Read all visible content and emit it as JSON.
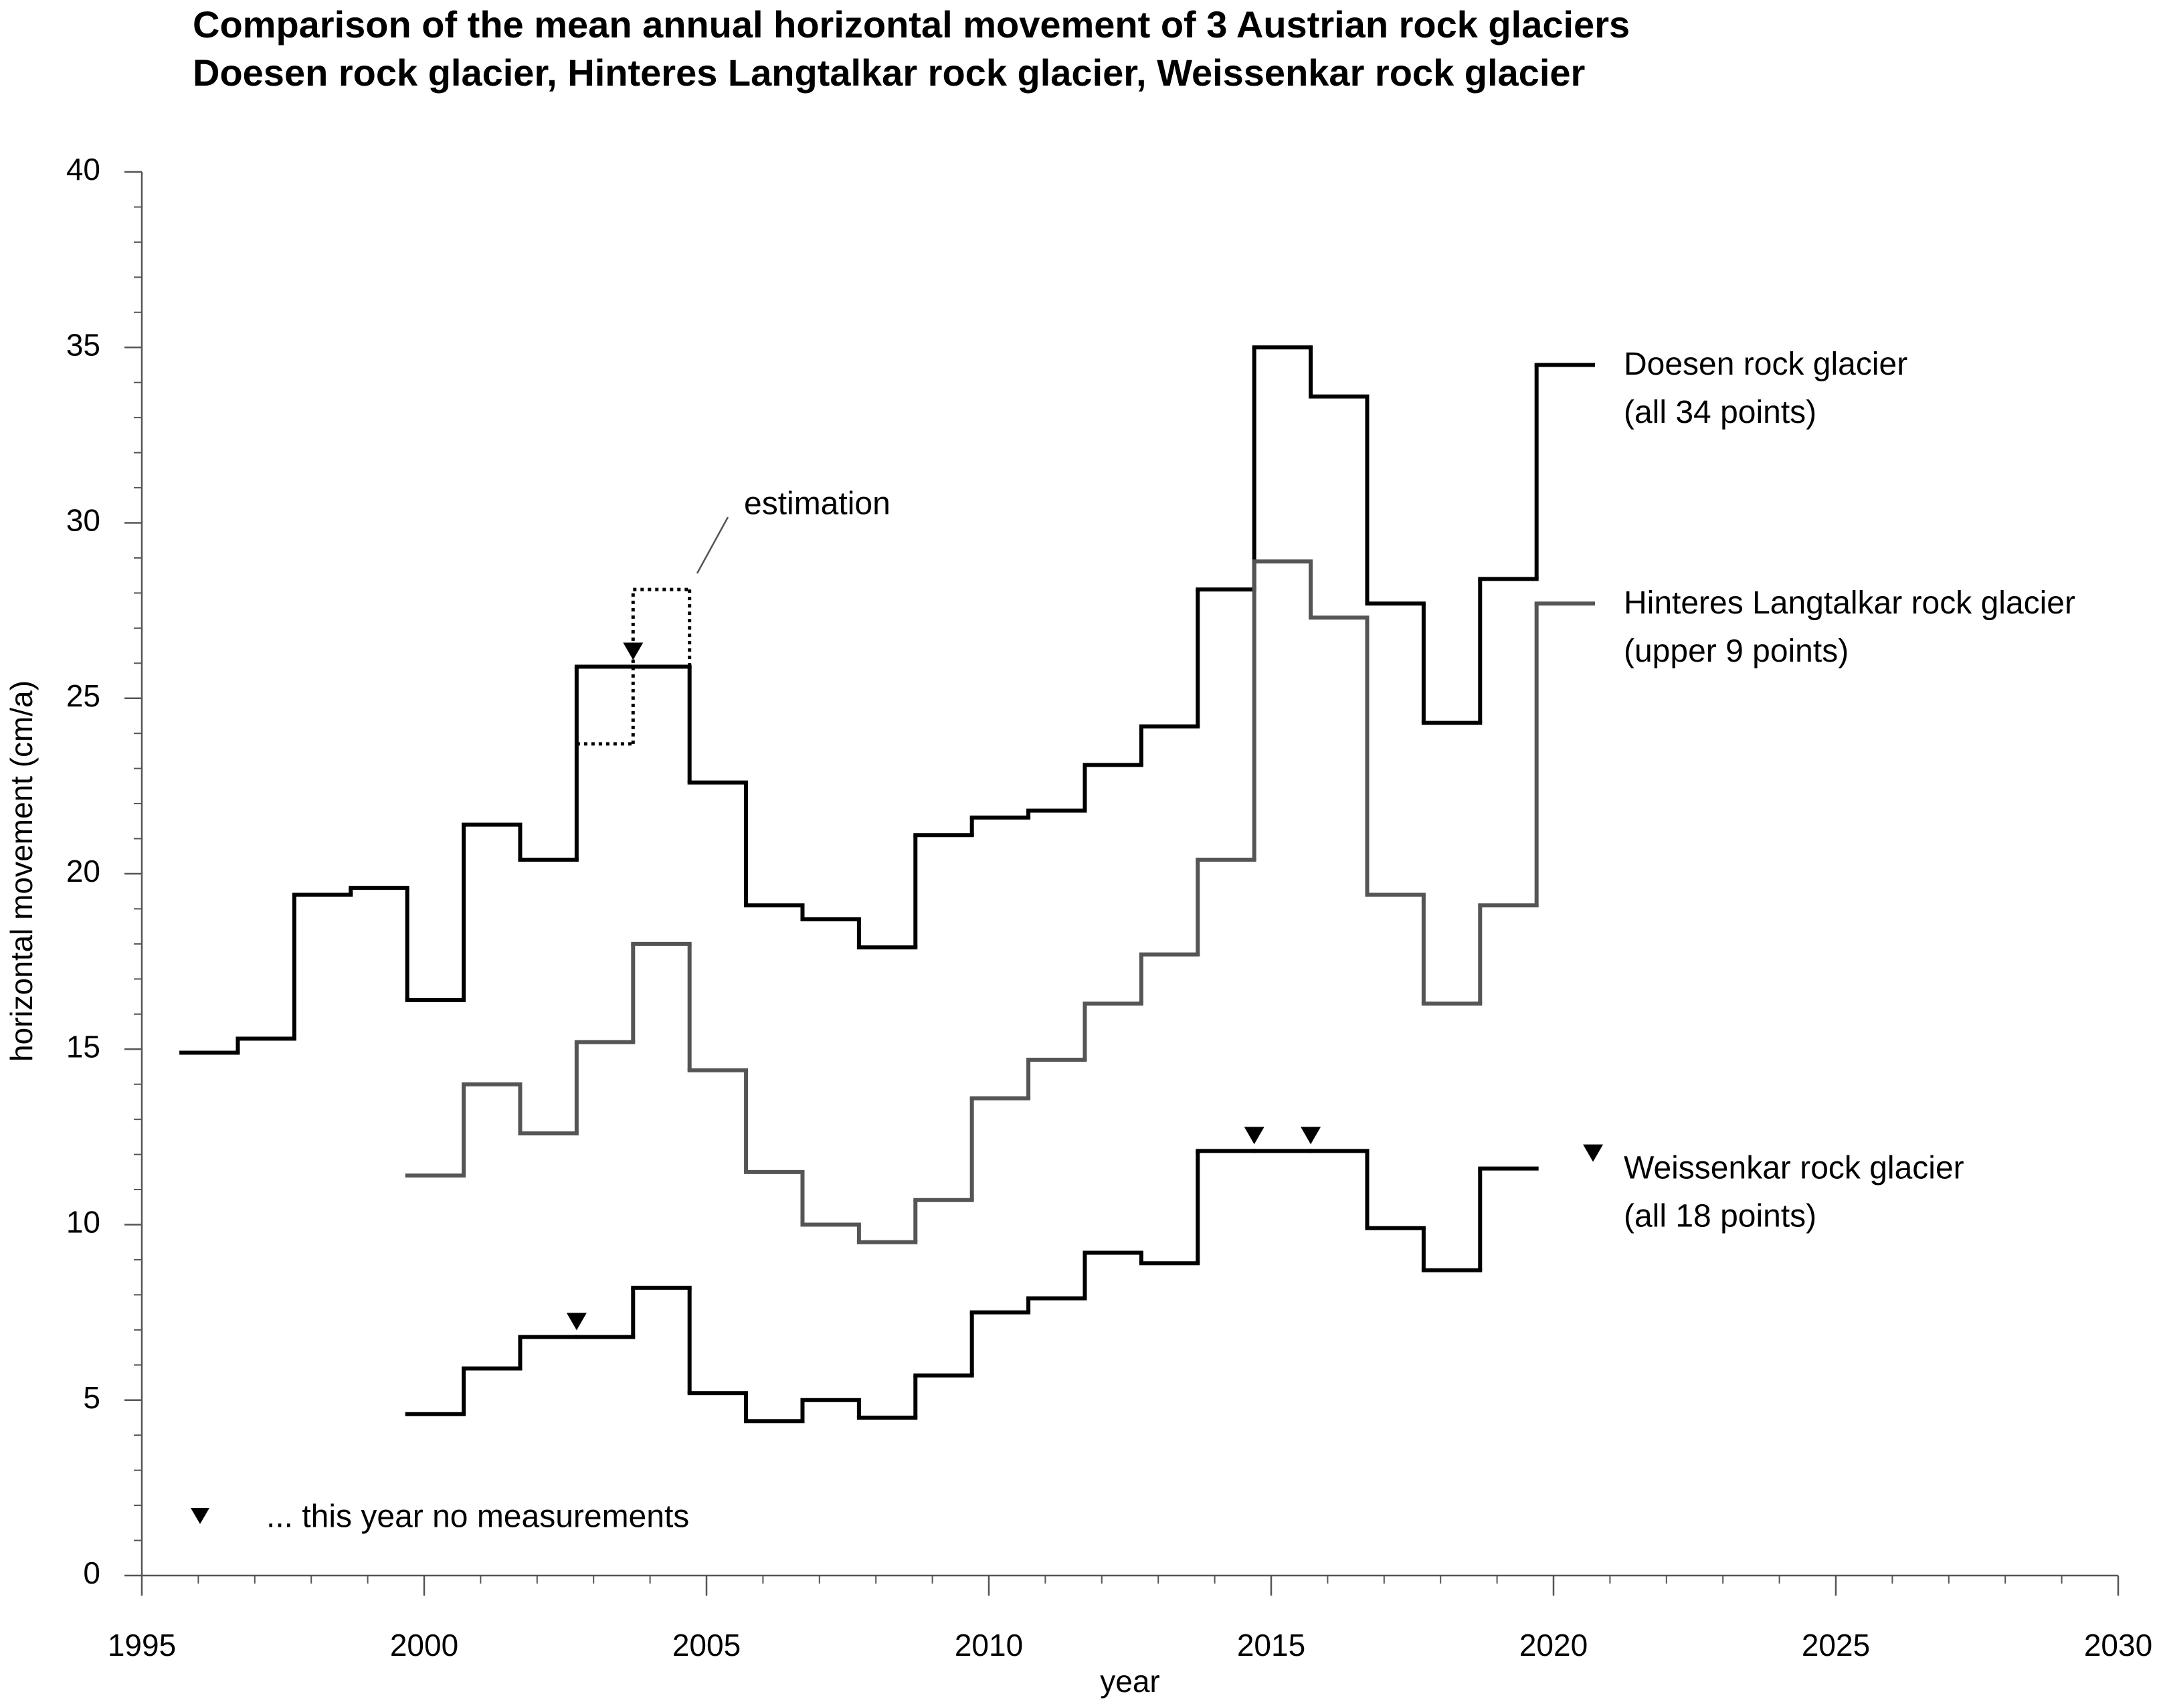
{
  "chart_data": {
    "type": "step",
    "title": "Comparison of the mean annual horizontal movement of 3 Austrian rock glaciers",
    "subtitle": "Doesen rock glacier, Hinteres Langtalkar rock glacier, Weissenkar rock glacier",
    "xlabel": "year",
    "ylabel": "horizontal movement (cm/a)",
    "xlim": [
      1995,
      2030
    ],
    "xticks": [
      1995,
      2000,
      2005,
      2010,
      2015,
      2020,
      2025,
      2030
    ],
    "xminorticks": [
      1995,
      1996,
      1997,
      1998,
      1999,
      2000,
      2001,
      2002,
      2003,
      2004,
      2005,
      2006,
      2007,
      2008,
      2009,
      2010,
      2011,
      2012,
      2013,
      2014,
      2015,
      2016,
      2017,
      2018,
      2019,
      2020,
      2021,
      2022,
      2023,
      2024,
      2025,
      2026,
      2027,
      2028,
      2029,
      2030
    ],
    "ylim": [
      0,
      40
    ],
    "yticks": [
      0,
      5,
      10,
      15,
      20,
      25,
      30,
      35,
      40
    ],
    "yminorticks": [
      0,
      1,
      2,
      3,
      4,
      5,
      6,
      7,
      8,
      9,
      10,
      11,
      12,
      13,
      14,
      15,
      16,
      17,
      18,
      19,
      20,
      21,
      22,
      23,
      24,
      25,
      26,
      27,
      28,
      29,
      30,
      31,
      32,
      33,
      34,
      35,
      36,
      37,
      38,
      39,
      40
    ],
    "series": [
      {
        "name": "Doesen rock glacier",
        "note": "(all 34 points)",
        "color": "#000000",
        "bins": [
          1995.7,
          1996.7,
          1997.7,
          1998.7,
          1999.7,
          2000.7,
          2001.7,
          2002.7,
          2003.7,
          2004.7,
          2005.7,
          2006.7,
          2007.7,
          2008.7,
          2009.7,
          2010.7,
          2011.7,
          2012.7,
          2013.7,
          2014.7,
          2015.7,
          2016.7,
          2017.7,
          2018.7,
          2019.7,
          2020.7
        ],
        "values": [
          14.9,
          15.3,
          19.4,
          19.6,
          16.4,
          21.4,
          20.4,
          25.9,
          25.9,
          22.6,
          19.1,
          18.7,
          17.9,
          21.1,
          21.6,
          21.8,
          23.1,
          24.2,
          28.1,
          35.0,
          33.6,
          27.7,
          24.3,
          28.4,
          34.5
        ],
        "no_measurement_x": [
          2003.7
        ]
      },
      {
        "name": "Hinteres Langtalkar rock glacier",
        "note": "(upper 9 points)",
        "color": "#555555",
        "bins": [
          1999.7,
          2000.7,
          2001.7,
          2002.7,
          2003.7,
          2004.7,
          2005.7,
          2006.7,
          2007.7,
          2008.7,
          2009.7,
          2010.7,
          2011.7,
          2012.7,
          2013.7,
          2014.7,
          2015.7,
          2016.7,
          2017.7,
          2018.7,
          2019.7,
          2020.7
        ],
        "values": [
          11.4,
          14.0,
          12.6,
          15.2,
          18.0,
          14.4,
          11.5,
          10.0,
          9.5,
          10.7,
          13.6,
          14.7,
          16.3,
          17.7,
          20.4,
          28.9,
          27.3,
          19.4,
          16.3,
          19.1,
          27.7
        ],
        "no_measurement_x": []
      },
      {
        "name": "Weissenkar rock glacier",
        "note": "(all 18 points)",
        "color": "#000000",
        "bins": [
          1999.7,
          2000.7,
          2001.7,
          2002.7,
          2003.7,
          2004.7,
          2005.7,
          2006.7,
          2007.7,
          2008.7,
          2009.7,
          2010.7,
          2011.7,
          2012.7,
          2013.7,
          2014.7,
          2015.7,
          2016.7,
          2017.7,
          2018.7,
          2019.7
        ],
        "values": [
          4.6,
          5.9,
          6.8,
          6.8,
          8.2,
          5.2,
          4.4,
          5.0,
          4.5,
          5.7,
          7.5,
          7.9,
          9.2,
          8.9,
          12.1,
          12.1,
          12.1,
          9.9,
          8.7,
          11.6
        ],
        "no_measurement_x": [
          2002.7,
          2014.7,
          2015.7,
          2020.7
        ]
      }
    ],
    "estimation": {
      "label": "estimation",
      "bins": [
        2002.7,
        2003.7,
        2004.7
      ],
      "values": [
        23.7,
        28.1
      ]
    },
    "no_measurement_note": "... this year no measurements"
  }
}
